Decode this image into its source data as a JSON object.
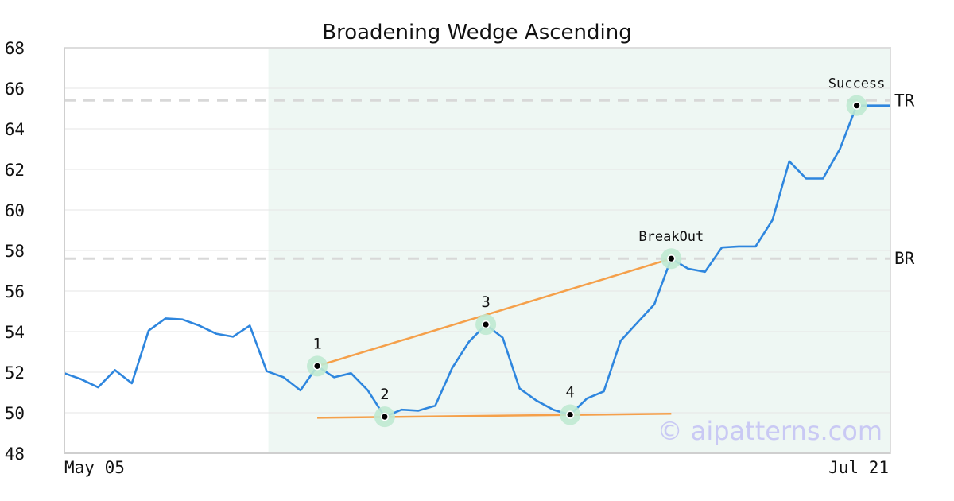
{
  "chart_data": {
    "type": "line",
    "title": "Broadening Wedge Ascending",
    "xlabel": "",
    "ylabel": "",
    "x_tick_labels": [
      "May 05",
      "Jul 21"
    ],
    "ylim": [
      48,
      68
    ],
    "yticks": [
      48,
      50,
      52,
      54,
      56,
      58,
      60,
      62,
      64,
      66,
      68
    ],
    "grid": "horizontal",
    "legend": "none",
    "series": [
      {
        "color": "#2e86de",
        "values": [
          51.95,
          51.65,
          51.25,
          52.1,
          51.45,
          54.05,
          54.65,
          54.6,
          54.3,
          53.9,
          53.75,
          54.3,
          52.05,
          51.75,
          51.1,
          52.3,
          51.75,
          51.95,
          51.1,
          49.8,
          50.15,
          50.1,
          50.35,
          52.2,
          53.5,
          54.35,
          53.7,
          51.2,
          50.6,
          50.15,
          49.9,
          50.7,
          51.05,
          53.55,
          54.45,
          55.35,
          57.6,
          57.1,
          56.95,
          58.15,
          58.2,
          58.2,
          59.5,
          62.4,
          61.55,
          61.55,
          63.0,
          65.15,
          65.15,
          65.15
        ]
      }
    ],
    "pattern_points": [
      {
        "label": "1",
        "index": 15,
        "value": 52.3
      },
      {
        "label": "2",
        "index": 19,
        "value": 49.8
      },
      {
        "label": "3",
        "index": 25,
        "value": 54.35
      },
      {
        "label": "4",
        "index": 30,
        "value": 49.9
      },
      {
        "label": "BreakOut",
        "index": 36,
        "value": 57.6
      },
      {
        "label": "Success",
        "index": 47,
        "value": 65.15
      }
    ],
    "trend_lines": [
      {
        "from_index": 15,
        "from_value": 52.3,
        "to_index": 36,
        "to_value": 57.6,
        "color": "#f5a04a"
      },
      {
        "from_index": 15,
        "from_value": 49.75,
        "to_index": 36,
        "to_value": 49.95,
        "color": "#f5a04a"
      }
    ],
    "reference_lines": [
      {
        "label": "TR",
        "value": 65.4
      },
      {
        "label": "BR",
        "value": 57.6
      }
    ],
    "highlight_range": {
      "from_index": 13,
      "to_index": 49,
      "color": "#eef7f3"
    },
    "marker_halo_color": "#bfe9d2",
    "watermark": "© aipatterns.com",
    "watermark_color": "#c9c9f4"
  }
}
